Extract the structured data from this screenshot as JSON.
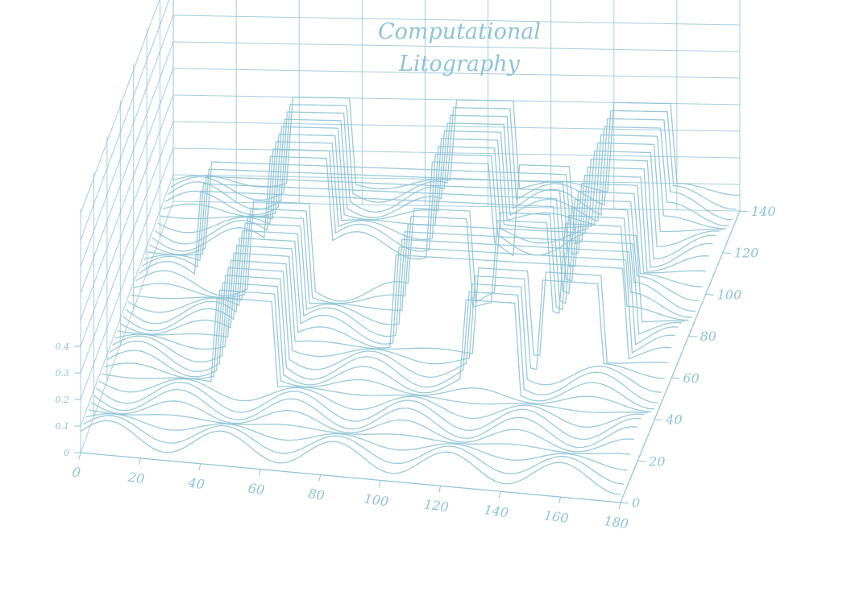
{
  "chart_data": {
    "type": "surface-contour-3d",
    "title_lines": [
      "Computational",
      "Litography"
    ],
    "x_ticks": [
      0,
      20,
      40,
      60,
      80,
      100,
      120,
      140,
      160,
      180
    ],
    "y_ticks": [
      0,
      20,
      40,
      60,
      80,
      100,
      120,
      140
    ],
    "z_ticks": [
      0,
      0.1,
      0.2,
      0.3,
      0.4
    ],
    "xlim": [
      0,
      180
    ],
    "ylim": [
      0,
      140
    ],
    "zlim": [
      0,
      0.4
    ],
    "grid": true,
    "line_color": "#8fc3d6"
  }
}
